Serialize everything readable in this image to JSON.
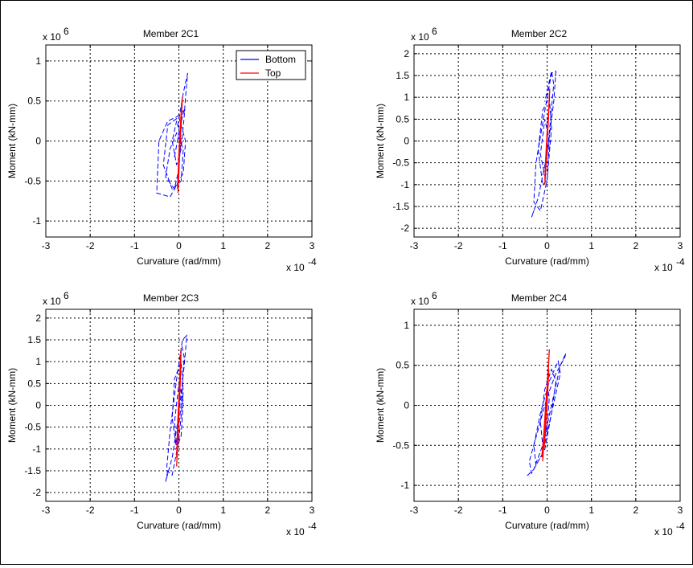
{
  "figure": {
    "background": "#ffffff",
    "frame_color": "#000000"
  },
  "legend": {
    "entries": [
      {
        "label": "Bottom",
        "color": "#0000ff"
      },
      {
        "label": "Top",
        "color": "#ff0000"
      }
    ]
  },
  "chart_data": [
    {
      "type": "line",
      "title": "Member 2C1",
      "xlabel": "Curvature (rad/mm)",
      "ylabel": "Moment (kN-mm)",
      "x_multiplier": "x 10",
      "x_exponent": "-4",
      "y_multiplier": "x 10",
      "y_exponent": "6",
      "xlim": [
        -3,
        3
      ],
      "ylim": [
        -1.2,
        1.2
      ],
      "xticks": [
        -3,
        -2,
        -1,
        0,
        1,
        2,
        3
      ],
      "yticks": [
        -1,
        -0.5,
        0,
        0.5,
        1
      ],
      "grid": true,
      "legend": "top-right",
      "series": [
        {
          "name": "Bottom",
          "color": "#0000ff",
          "style": "dashed",
          "x": [
            -0.1,
            0.0,
            0.1,
            0.15,
            0.05,
            -0.05,
            -0.25,
            -0.45,
            -0.5,
            -0.2,
            0.1,
            0.15,
            0.0,
            -0.25,
            -0.35,
            -0.15,
            0.05,
            0.1,
            -0.05,
            -0.2,
            -0.3,
            -0.1,
            0.0,
            0.05,
            -0.05,
            -0.15,
            -0.05,
            0.05,
            0.12,
            0.15,
            0.2,
            0.1,
            -0.02
          ],
          "y": [
            -0.2,
            0.1,
            0.35,
            0.4,
            0.35,
            0.3,
            0.25,
            0.0,
            -0.65,
            -0.7,
            -0.4,
            0.0,
            0.3,
            0.2,
            -0.3,
            -0.6,
            -0.5,
            -0.1,
            0.1,
            -0.1,
            -0.45,
            -0.6,
            -0.35,
            0.05,
            0.25,
            0.0,
            -0.3,
            -0.1,
            0.3,
            0.55,
            0.85,
            0.6,
            0.2
          ]
        },
        {
          "name": "Top",
          "color": "#ff0000",
          "style": "solid",
          "x": [
            -0.02,
            0.0,
            0.02,
            0.05,
            0.08,
            0.06,
            0.03,
            0.0,
            -0.02,
            -0.03
          ],
          "y": [
            -0.65,
            -0.4,
            -0.1,
            0.2,
            0.55,
            0.45,
            0.15,
            -0.15,
            -0.45,
            -0.6
          ]
        }
      ]
    },
    {
      "type": "line",
      "title": "Member 2C2",
      "xlabel": "Curvature (rad/mm)",
      "ylabel": "Moment (kN-mm)",
      "x_multiplier": "x 10",
      "x_exponent": "-4",
      "y_multiplier": "x 10",
      "y_exponent": "6",
      "xlim": [
        -3,
        3
      ],
      "ylim": [
        -2.2,
        2.2
      ],
      "xticks": [
        -3,
        -2,
        -1,
        0,
        1,
        2,
        3
      ],
      "yticks": [
        -2,
        -1.5,
        -1,
        -0.5,
        0,
        0.5,
        1,
        1.5,
        2
      ],
      "grid": true,
      "series": [
        {
          "name": "Bottom",
          "color": "#0000ff",
          "style": "dashed",
          "x": [
            -0.3,
            -0.35,
            -0.2,
            0.0,
            0.15,
            0.2,
            0.1,
            -0.05,
            -0.25,
            -0.3,
            -0.15,
            0.0,
            0.1,
            0.05,
            -0.1,
            -0.2,
            -0.1,
            0.0,
            0.05,
            -0.05,
            -0.15,
            -0.05,
            0.05,
            0.15,
            0.1,
            -0.05
          ],
          "y": [
            -1.6,
            -1.75,
            -1.3,
            -0.3,
            0.9,
            1.6,
            1.55,
            0.7,
            -0.5,
            -1.4,
            -1.6,
            -0.9,
            0.3,
            1.0,
            0.7,
            -0.2,
            -1.0,
            -0.9,
            0.0,
            0.5,
            -0.3,
            -0.8,
            0.2,
            1.3,
            1.6,
            0.9
          ]
        },
        {
          "name": "Top",
          "color": "#ff0000",
          "style": "solid",
          "x": [
            -0.05,
            -0.02,
            0.0,
            0.03,
            0.06,
            0.04,
            0.0,
            -0.03,
            -0.05
          ],
          "y": [
            -1.0,
            -0.5,
            0.0,
            0.5,
            1.2,
            0.8,
            0.2,
            -0.4,
            -0.9
          ]
        }
      ]
    },
    {
      "type": "line",
      "title": "Member 2C3",
      "xlabel": "Curvature (rad/mm)",
      "ylabel": "Moment (kN-mm)",
      "x_multiplier": "x 10",
      "x_exponent": "-4",
      "y_multiplier": "x 10",
      "y_exponent": "6",
      "xlim": [
        -3,
        3
      ],
      "ylim": [
        -2.2,
        2.2
      ],
      "xticks": [
        -3,
        -2,
        -1,
        0,
        1,
        2,
        3
      ],
      "yticks": [
        -2,
        -1.5,
        -1,
        -0.5,
        0,
        0.5,
        1,
        1.5,
        2
      ],
      "grid": true,
      "series": [
        {
          "name": "Bottom",
          "color": "#0000ff",
          "style": "dashed",
          "x": [
            -0.25,
            -0.3,
            -0.15,
            0.0,
            0.12,
            0.18,
            0.08,
            -0.05,
            -0.2,
            -0.28,
            -0.15,
            0.0,
            0.1,
            0.05,
            -0.1,
            -0.15,
            -0.05,
            0.05,
            0.1,
            0.0,
            -0.1,
            -0.05,
            0.05,
            0.12,
            0.06
          ],
          "y": [
            -1.5,
            -1.75,
            -1.2,
            -0.2,
            0.9,
            1.6,
            1.5,
            0.6,
            -0.6,
            -1.5,
            -1.6,
            -0.8,
            0.3,
            1.0,
            0.6,
            -0.3,
            -1.0,
            -0.7,
            0.1,
            0.5,
            -0.4,
            -0.9,
            0.0,
            1.1,
            1.4
          ]
        },
        {
          "name": "Top",
          "color": "#ff0000",
          "style": "solid",
          "x": [
            -0.05,
            -0.02,
            0.0,
            0.03,
            0.05,
            0.03,
            0.0,
            -0.03,
            -0.05
          ],
          "y": [
            -1.4,
            -0.8,
            -0.2,
            0.5,
            1.3,
            0.9,
            0.2,
            -0.5,
            -1.2
          ]
        }
      ]
    },
    {
      "type": "line",
      "title": "Member 2C4",
      "xlabel": "Curvature (rad/mm)",
      "ylabel": "Moment (kN-mm)",
      "x_multiplier": "x 10",
      "x_exponent": "-4",
      "y_multiplier": "x 10",
      "y_exponent": "6",
      "xlim": [
        -3,
        3
      ],
      "ylim": [
        -1.2,
        1.2
      ],
      "xticks": [
        -3,
        -2,
        -1,
        0,
        1,
        2,
        3
      ],
      "yticks": [
        -1,
        -0.5,
        0,
        0.5,
        1
      ],
      "grid": true,
      "series": [
        {
          "name": "Bottom",
          "color": "#0000ff",
          "style": "dashed",
          "x": [
            -0.45,
            -0.3,
            -0.1,
            0.1,
            0.3,
            0.42,
            0.4,
            0.2,
            0.0,
            -0.2,
            -0.4,
            -0.35,
            -0.1,
            0.1,
            0.3,
            0.25,
            0.05,
            -0.15,
            -0.3,
            -0.25,
            -0.05,
            0.1,
            0.2,
            0.1,
            -0.05,
            -0.15,
            -0.1,
            0.0,
            0.05,
            -0.02
          ],
          "y": [
            -0.88,
            -0.8,
            -0.5,
            0.0,
            0.5,
            0.65,
            0.6,
            0.4,
            0.1,
            -0.3,
            -0.7,
            -0.85,
            -0.6,
            -0.1,
            0.4,
            0.55,
            0.3,
            -0.1,
            -0.5,
            -0.75,
            -0.55,
            -0.1,
            0.3,
            0.45,
            0.2,
            -0.2,
            -0.5,
            -0.3,
            0.1,
            0.3
          ]
        },
        {
          "name": "Top",
          "color": "#ff0000",
          "style": "solid",
          "x": [
            -0.1,
            -0.05,
            0.0,
            0.05,
            0.02,
            -0.03,
            -0.08,
            -0.12,
            -0.06,
            0.0,
            0.04
          ],
          "y": [
            -0.7,
            -0.3,
            0.1,
            0.7,
            0.4,
            0.0,
            -0.4,
            -0.65,
            -0.5,
            0.0,
            0.45
          ]
        }
      ]
    }
  ]
}
